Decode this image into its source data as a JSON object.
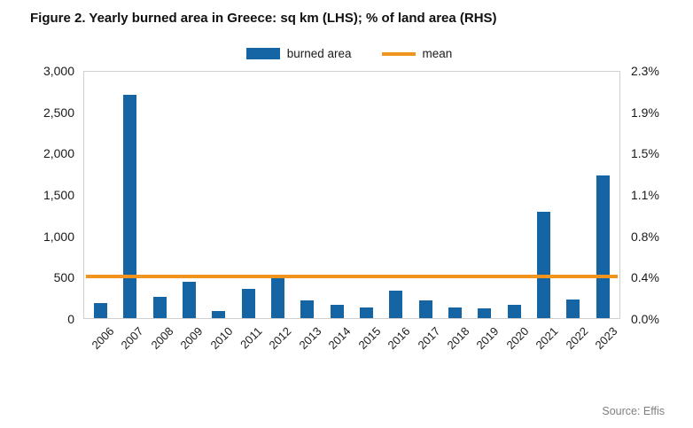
{
  "title": "Figure 2. Yearly burned area in Greece: sq km (LHS); % of land area (RHS)",
  "legend": {
    "burned_area": "burned area",
    "mean": "mean"
  },
  "source": "Source: Effis",
  "colors": {
    "bar": "#1565a5",
    "mean_line": "#f0941e"
  },
  "chart_data": {
    "type": "bar",
    "title": "Figure 2. Yearly burned area in Greece: sq km (LHS); % of land area (RHS)",
    "categories": [
      "2006",
      "2007",
      "2008",
      "2009",
      "2010",
      "2011",
      "2012",
      "2013",
      "2014",
      "2015",
      "2016",
      "2017",
      "2018",
      "2019",
      "2020",
      "2021",
      "2022",
      "2023"
    ],
    "series": [
      {
        "name": "burned area",
        "values": [
          180,
          2720,
          260,
          440,
          85,
          360,
          490,
          215,
          160,
          135,
          330,
          215,
          130,
          115,
          165,
          1300,
          225,
          1740
        ]
      }
    ],
    "mean_line": {
      "name": "mean",
      "value": 510
    },
    "ylabel_left": "sq km (LHS)",
    "ylabel_right": "% of land area (RHS)",
    "ylim_left": [
      0,
      3000
    ],
    "ylim_right_pct": [
      0,
      2.3
    ],
    "yticks_left": [
      "3,000",
      "2,500",
      "2,000",
      "1,500",
      "1,000",
      "500",
      "0"
    ],
    "yticks_right": [
      "2.3%",
      "1.9%",
      "1.5%",
      "1.1%",
      "0.8%",
      "0.4%",
      "0.0%"
    ],
    "legend_position": "top-center",
    "grid": false
  }
}
